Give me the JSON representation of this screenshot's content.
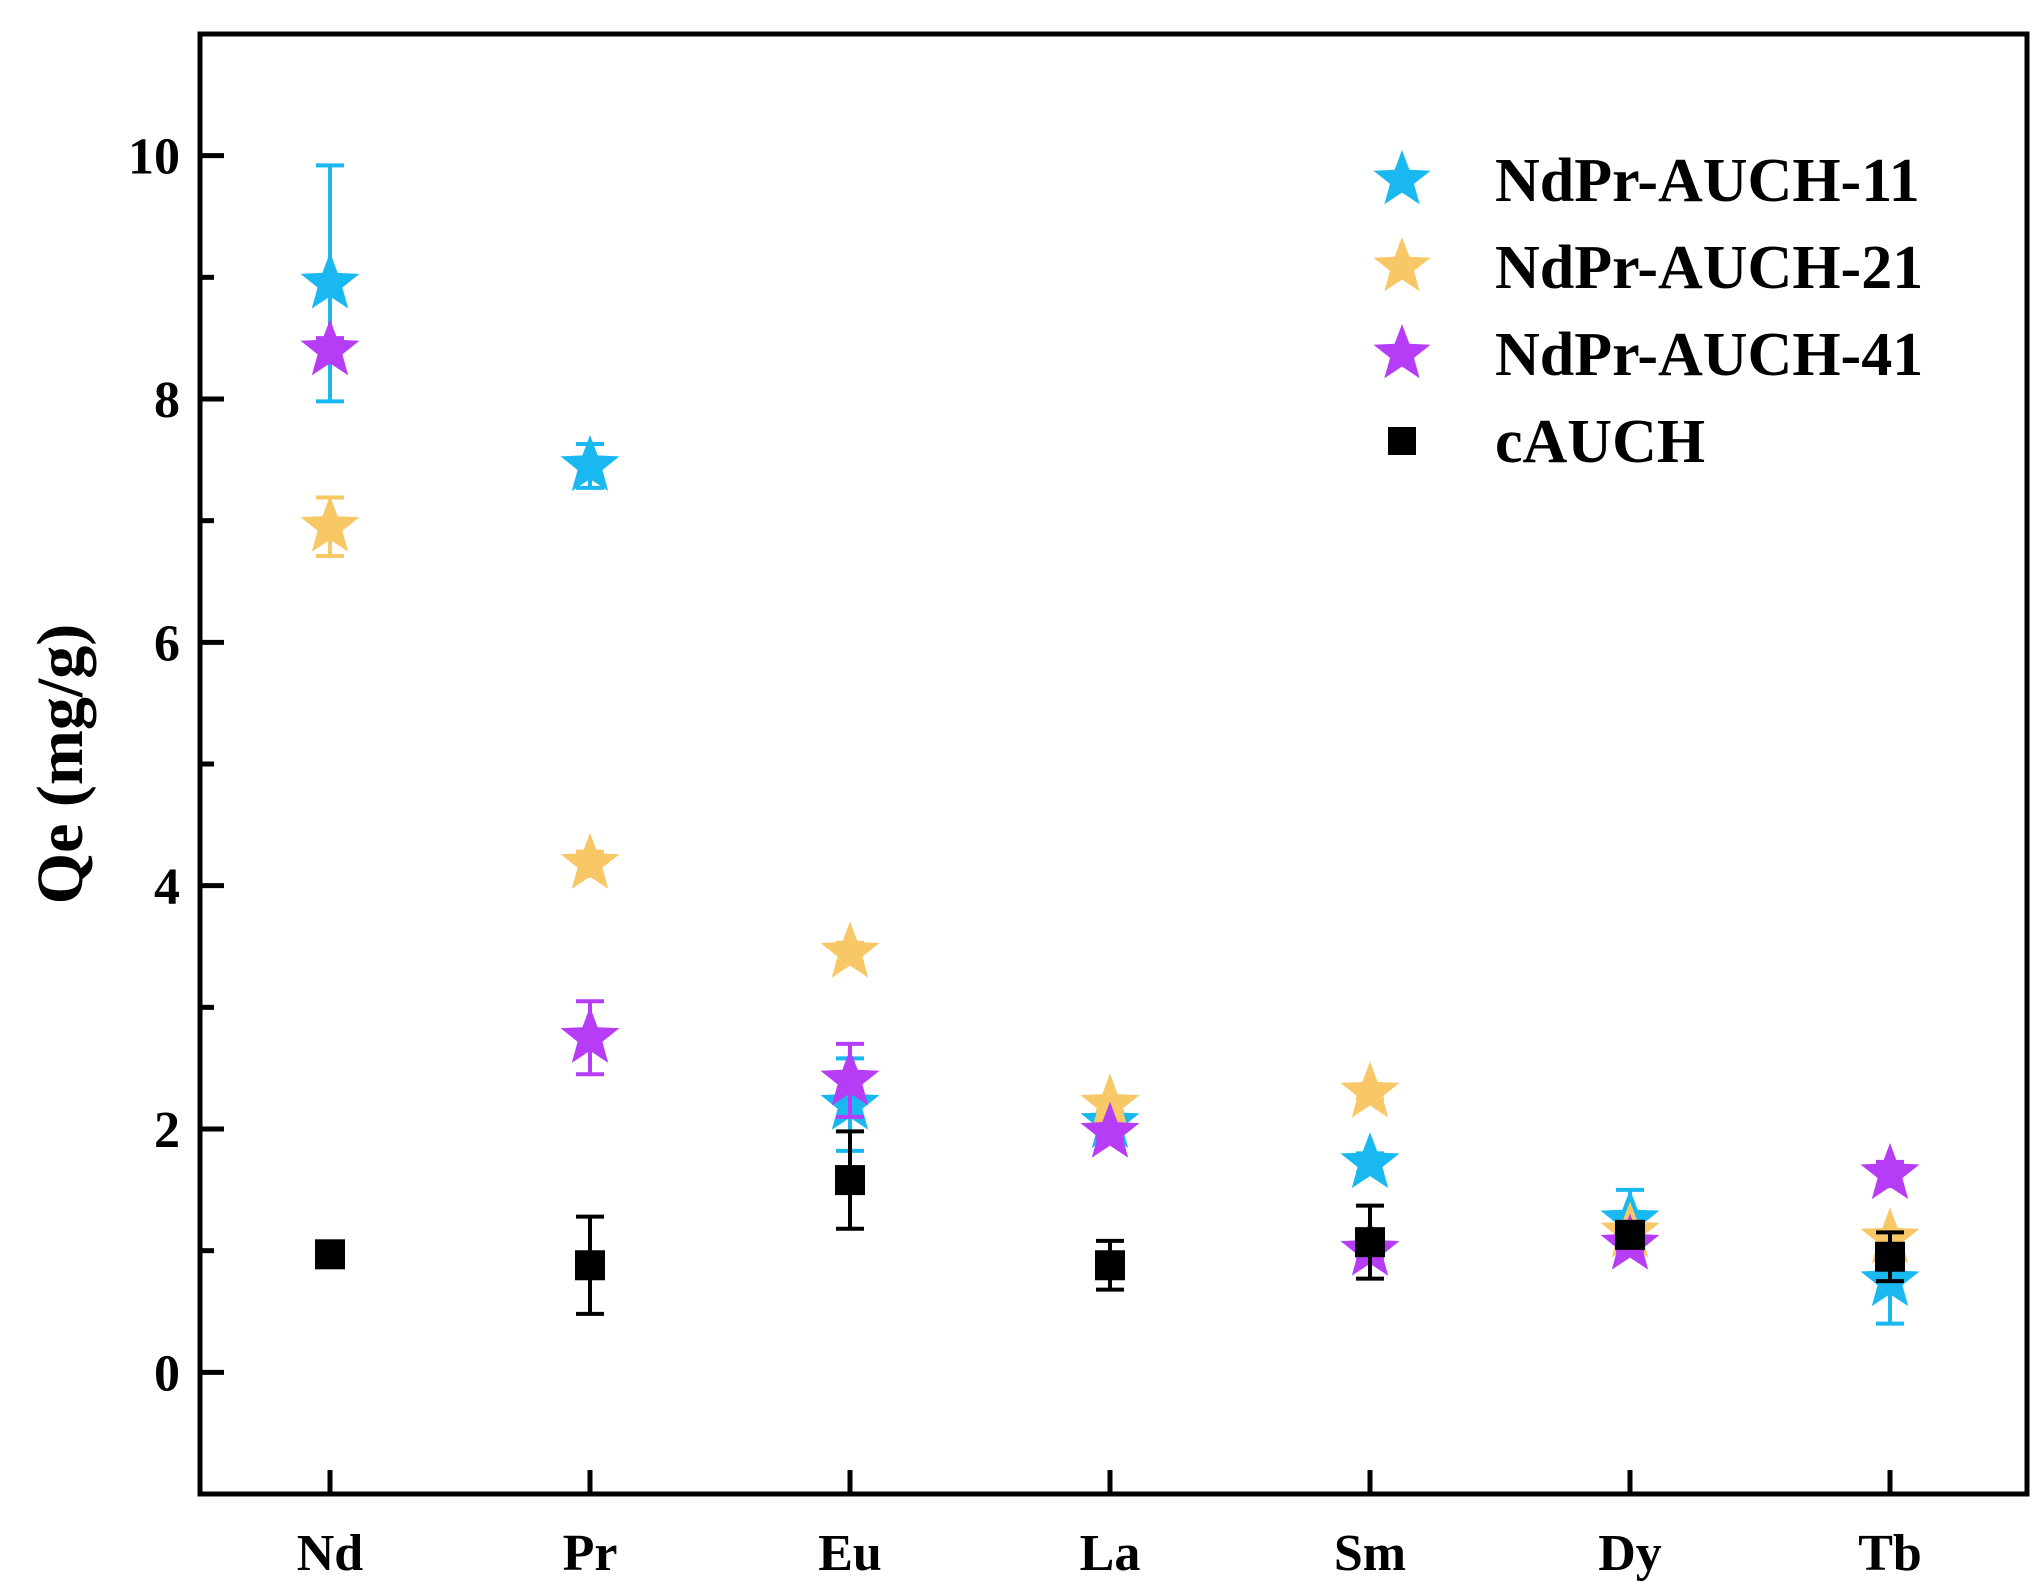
{
  "chart_data": {
    "type": "scatter",
    "title": "",
    "xlabel": "",
    "ylabel": "Qe (mg/g)",
    "ylim": [
      -1,
      11
    ],
    "yticks": [
      0,
      2,
      4,
      6,
      8,
      10
    ],
    "yminor": [
      1,
      3,
      5,
      7,
      9
    ],
    "categories": [
      "Nd",
      "Pr",
      "Eu",
      "La",
      "Sm",
      "Dy",
      "Tb"
    ],
    "legend_position": "top-right",
    "series": [
      {
        "name": "NdPr-AUCH-11",
        "marker": "star",
        "color": "#1ab8f0",
        "values": [
          8.95,
          7.45,
          2.2,
          2.05,
          1.72,
          1.25,
          0.75
        ],
        "errors": [
          0.97,
          0.18,
          0.38,
          0.08,
          0.08,
          0.25,
          0.35
        ]
      },
      {
        "name": "NdPr-AUCH-21",
        "marker": "star",
        "color": "#f8c766",
        "values": [
          6.95,
          4.18,
          3.45,
          2.2,
          2.3,
          1.15,
          1.1
        ],
        "errors": [
          0.24,
          0.1,
          0.08,
          0.05,
          0.05,
          0.06,
          0.06
        ]
      },
      {
        "name": "NdPr-AUCH-41",
        "marker": "star",
        "color": "#b63cf5",
        "values": [
          8.4,
          2.75,
          2.4,
          1.97,
          1.0,
          1.05,
          1.63
        ],
        "errors": [
          0.1,
          0.3,
          0.3,
          0.05,
          0.05,
          0.05,
          0.1
        ]
      },
      {
        "name": "cAUCH",
        "marker": "square",
        "color": "#000000",
        "values": [
          0.97,
          0.88,
          1.58,
          0.88,
          1.07,
          1.13,
          0.95
        ],
        "errors": [
          0.05,
          0.4,
          0.4,
          0.2,
          0.3,
          0.07,
          0.2
        ]
      }
    ]
  }
}
